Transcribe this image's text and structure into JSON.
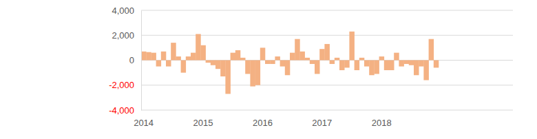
{
  "chart_data": {
    "type": "bar",
    "color": "#f4b183",
    "grid": true,
    "categories": [
      "2014",
      null,
      null,
      null,
      null,
      null,
      null,
      null,
      null,
      null,
      null,
      null,
      "2015",
      null,
      null,
      null,
      null,
      null,
      null,
      null,
      null,
      null,
      null,
      null,
      "2016",
      null,
      null,
      null,
      null,
      null,
      null,
      null,
      null,
      null,
      null,
      null,
      "2017",
      null,
      null,
      null,
      null,
      null,
      null,
      null,
      null,
      null,
      null,
      null,
      "2018",
      null,
      null,
      null,
      null,
      null,
      null,
      null,
      null,
      null,
      null,
      null
    ],
    "values": [
      700,
      650,
      600,
      -500,
      700,
      -500,
      1400,
      300,
      -1000,
      300,
      600,
      2100,
      1200,
      -200,
      -400,
      -700,
      -1300,
      -2700,
      600,
      800,
      200,
      -1100,
      -2100,
      -2000,
      1000,
      -300,
      -300,
      300,
      -500,
      -1200,
      600,
      1700,
      700,
      200,
      -300,
      -1100,
      900,
      1300,
      -300,
      200,
      -800,
      -600,
      2300,
      -800,
      200,
      -500,
      -1200,
      -1100,
      300,
      -800,
      -800,
      600,
      -500,
      -300,
      -400,
      -1200,
      -500,
      -1600,
      1700,
      -600
    ],
    "ylim": [
      -4000,
      4000
    ],
    "yticks": [
      {
        "value": -4000,
        "label": "-4,000"
      },
      {
        "value": -2000,
        "label": "-2,000"
      },
      0,
      {
        "value": 2000,
        "label": "2,000"
      },
      {
        "value": 4000,
        "label": "4,000"
      }
    ]
  }
}
